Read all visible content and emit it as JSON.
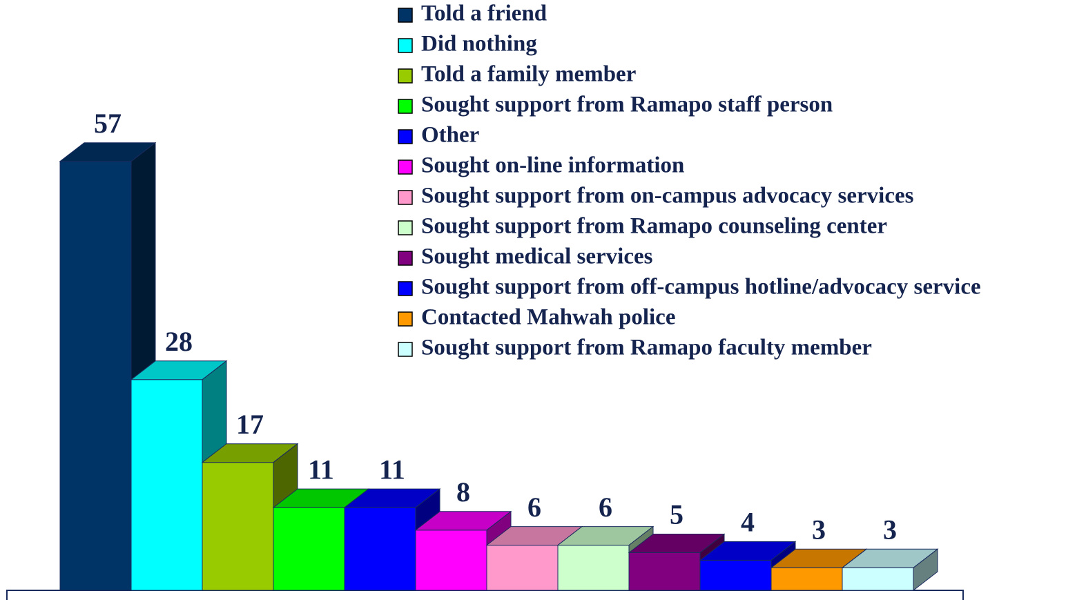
{
  "chart_data": {
    "type": "bar",
    "series": [
      {
        "name": "Told a friend",
        "color": "#003366",
        "values": [
          57
        ]
      },
      {
        "name": "Did nothing",
        "color": "#00ffff",
        "values": [
          28
        ]
      },
      {
        "name": "Told a family member",
        "color": "#99cc00",
        "values": [
          17
        ]
      },
      {
        "name": "Sought support from Ramapo staff person",
        "color": "#00ff00",
        "values": [
          11
        ]
      },
      {
        "name": "Other",
        "color": "#0000ff",
        "values": [
          11
        ]
      },
      {
        "name": "Sought on-line information",
        "color": "#ff00ff",
        "values": [
          8
        ]
      },
      {
        "name": "Sought support from on-campus advocacy services",
        "color": "#ff99cc",
        "values": [
          6
        ]
      },
      {
        "name": "Sought support from Ramapo counseling center",
        "color": "#ccffcc",
        "values": [
          6
        ]
      },
      {
        "name": "Sought medical services",
        "color": "#800080",
        "values": [
          5
        ]
      },
      {
        "name": "Sought support from off-campus hotline/advocacy service",
        "color": "#0000ff",
        "values": [
          4
        ]
      },
      {
        "name": "Contacted Mahwah police",
        "color": "#ff9900",
        "values": [
          3
        ]
      },
      {
        "name": "Sought support from Ramapo faculty member",
        "color": "#ccffff",
        "values": [
          3
        ]
      }
    ]
  }
}
